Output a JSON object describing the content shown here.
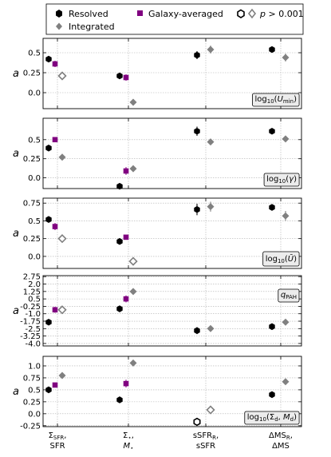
{
  "legend": {
    "placement": "top",
    "items": [
      {
        "label": "Resolved",
        "marker": "hexagon",
        "color": "#000000"
      },
      {
        "label": "Integrated",
        "marker": "diamond",
        "color": "#808080"
      },
      {
        "label": "Galaxy-averaged",
        "marker": "square",
        "color": "#800080"
      },
      {
        "label": "p > 0.001",
        "marker": "open-hexagon-and-diamond",
        "color": "#000000"
      }
    ]
  },
  "colors": {
    "resolved": "#000000",
    "integrated": "#808080",
    "galaxy_averaged": "#800080",
    "grid": "#b0b0b0"
  },
  "x_tick_labels": [
    [
      "Σ_SFR,",
      "SFR"
    ],
    [
      "Σ⋆,",
      "M⋆"
    ],
    [
      "sSFR_R,",
      "sSFR"
    ],
    [
      "ΔMS_R,",
      "ΔMS"
    ]
  ],
  "chart_data": [
    {
      "type": "scatter",
      "panel_label": "log10(Umin)",
      "ylabel": "a",
      "ylim": [
        -0.2,
        0.68
      ],
      "yticks": [
        0.5,
        0.25,
        0.0
      ],
      "ytick_labels": [
        "0.5",
        "0.25",
        "0.0"
      ],
      "grid": true,
      "categories": [
        "Σ_SFR / SFR",
        "Σ⋆ / M⋆",
        "sSFR_R / sSFR",
        "ΔMS_R / ΔMS"
      ],
      "series": [
        {
          "name": "Resolved",
          "values": [
            0.42,
            0.21,
            0.47,
            0.54
          ],
          "errors": [
            0.03,
            0.02,
            0.05,
            0.02
          ],
          "open": [
            false,
            false,
            false,
            false
          ]
        },
        {
          "name": "Galaxy-averaged",
          "values": [
            0.36,
            0.19,
            null,
            null
          ],
          "errors": [
            0.04,
            0.04,
            null,
            null
          ],
          "open": [
            false,
            false,
            false,
            false
          ]
        },
        {
          "name": "Integrated",
          "values": [
            0.21,
            -0.12,
            0.54,
            0.44
          ],
          "errors": [
            0.03,
            0.04,
            0.05,
            0.05
          ],
          "open": [
            true,
            false,
            false,
            false
          ]
        }
      ]
    },
    {
      "type": "scatter",
      "panel_label": "log10(γ)",
      "ylabel": "a",
      "ylim": [
        -0.14,
        0.78
      ],
      "yticks": [
        0.5,
        0.25,
        0.0
      ],
      "ytick_labels": [
        "0.5",
        "0.25",
        "0.0"
      ],
      "grid": true,
      "categories": [
        "Σ_SFR / SFR",
        "Σ⋆ / M⋆",
        "sSFR_R / sSFR",
        "ΔMS_R / ΔMS"
      ],
      "series": [
        {
          "name": "Resolved",
          "values": [
            0.39,
            -0.11,
            0.61,
            0.61
          ],
          "errors": [
            0.03,
            0.02,
            0.06,
            0.03
          ],
          "open": [
            false,
            false,
            false,
            false
          ]
        },
        {
          "name": "Galaxy-averaged",
          "values": [
            0.5,
            0.09,
            null,
            null
          ],
          "errors": [
            0.03,
            0.05,
            null,
            null
          ],
          "open": [
            false,
            false,
            false,
            false
          ]
        },
        {
          "name": "Integrated",
          "values": [
            0.27,
            0.12,
            0.47,
            0.51
          ],
          "errors": [
            0.02,
            0.03,
            0.03,
            0.04
          ],
          "open": [
            false,
            false,
            false,
            false
          ]
        }
      ]
    },
    {
      "type": "scatter",
      "panel_label": "log10(Ū)",
      "ylabel": "a",
      "ylim": [
        -0.17,
        0.82
      ],
      "yticks": [
        0.75,
        0.5,
        0.25,
        0.0
      ],
      "ytick_labels": [
        "0.75",
        "0.5",
        "0.25",
        "0.0"
      ],
      "grid": true,
      "categories": [
        "Σ_SFR / SFR",
        "Σ⋆ / M⋆",
        "sSFR_R / sSFR",
        "ΔMS_R / ΔMS"
      ],
      "series": [
        {
          "name": "Resolved",
          "values": [
            0.52,
            0.21,
            0.66,
            0.69
          ],
          "errors": [
            0.03,
            0.02,
            0.08,
            0.03
          ],
          "open": [
            false,
            false,
            false,
            false
          ]
        },
        {
          "name": "Galaxy-averaged",
          "values": [
            0.42,
            0.27,
            null,
            null
          ],
          "errors": [
            0.05,
            0.03,
            null,
            null
          ],
          "open": [
            false,
            false,
            false,
            false
          ]
        },
        {
          "name": "Integrated",
          "values": [
            0.25,
            -0.07,
            0.7,
            0.57
          ],
          "errors": [
            0.03,
            0.03,
            0.07,
            0.07
          ],
          "open": [
            true,
            true,
            false,
            false
          ]
        }
      ]
    },
    {
      "type": "scatter",
      "panel_label": "qPAH",
      "ylabel": "a",
      "ylim": [
        -4.25,
        2.85
      ],
      "yticks": [
        2.75,
        2.0,
        1.25,
        0.5,
        -0.25,
        -1.0,
        -1.75,
        -2.5,
        -3.25,
        -4.0
      ],
      "ytick_labels": [
        "2.75",
        "2.0",
        "1.25",
        "0.5",
        "-0.25",
        "-1.0",
        "-1.75",
        "-2.5",
        "-3.25",
        "-4.0"
      ],
      "grid": true,
      "categories": [
        "Σ_SFR / SFR",
        "Σ⋆ / M⋆",
        "sSFR_R / sSFR",
        "ΔMS_R / ΔMS"
      ],
      "series": [
        {
          "name": "Resolved",
          "values": [
            -1.85,
            -0.5,
            -2.7,
            -2.3
          ],
          "errors": [
            0.2,
            0.1,
            0.35,
            0.25
          ],
          "open": [
            false,
            false,
            false,
            false
          ]
        },
        {
          "name": "Galaxy-averaged",
          "values": [
            -0.6,
            0.5,
            null,
            null
          ],
          "errors": [
            0.3,
            0.35,
            null,
            null
          ],
          "open": [
            false,
            false,
            false,
            false
          ]
        },
        {
          "name": "Integrated",
          "values": [
            -0.6,
            1.25,
            -2.5,
            -1.85
          ],
          "errors": [
            0.15,
            0.15,
            0.2,
            0.3
          ],
          "open": [
            true,
            false,
            false,
            false
          ]
        }
      ]
    },
    {
      "type": "scatter",
      "panel_label": "log10(Σd, Md)",
      "ylabel": "a",
      "ylim": [
        -0.27,
        1.2
      ],
      "yticks": [
        1.0,
        0.75,
        0.5,
        0.25,
        0.0,
        -0.25
      ],
      "ytick_labels": [
        "1.0",
        "0.75",
        "0.5",
        "0.25",
        "0.0",
        "-0.25"
      ],
      "grid": true,
      "categories": [
        "Σ_SFR / SFR",
        "Σ⋆ / M⋆",
        "sSFR_R / sSFR",
        "ΔMS_R / ΔMS"
      ],
      "series": [
        {
          "name": "Resolved",
          "values": [
            0.5,
            0.29,
            -0.17,
            0.4
          ],
          "errors": [
            0.04,
            0.03,
            0.02,
            0.05
          ],
          "open": [
            false,
            false,
            true,
            false
          ]
        },
        {
          "name": "Galaxy-averaged",
          "values": [
            0.6,
            0.63,
            null,
            null
          ],
          "errors": [
            0.05,
            0.08,
            null,
            null
          ],
          "open": [
            false,
            false,
            false,
            false
          ]
        },
        {
          "name": "Integrated",
          "values": [
            0.8,
            1.06,
            0.08,
            0.67
          ],
          "errors": [
            0.03,
            0.03,
            0.06,
            0.06
          ],
          "open": [
            false,
            false,
            true,
            false
          ]
        }
      ]
    }
  ]
}
